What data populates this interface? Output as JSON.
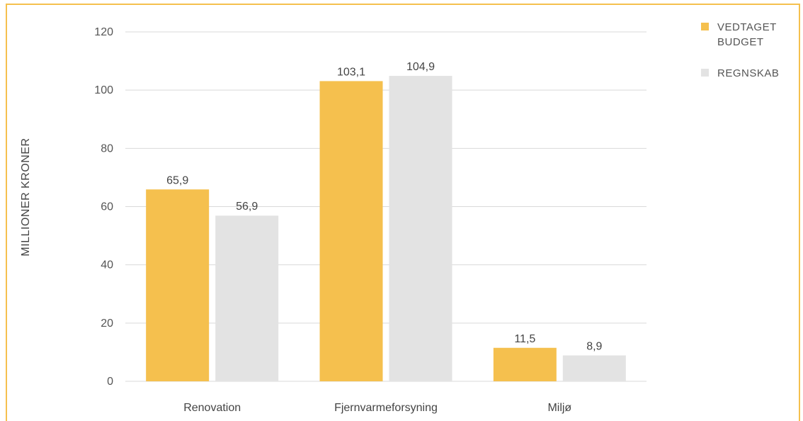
{
  "chart_data": {
    "type": "bar",
    "categories": [
      "Renovation",
      "Fjernvarmeforsyning",
      "Miljø"
    ],
    "series": [
      {
        "name": "VEDTAGET BUDGET",
        "values": [
          65.9,
          103.1,
          11.5
        ],
        "labels": [
          "65,9",
          "103,1",
          "11,5"
        ],
        "color": "#f5c04e"
      },
      {
        "name": "REGNSKAB",
        "values": [
          56.9,
          104.9,
          8.9
        ],
        "labels": [
          "56,9",
          "104,9",
          "8,9"
        ],
        "color": "#e3e3e3"
      }
    ],
    "ylabel": "MILLIONER KRONER",
    "xlabel": "",
    "ylim": [
      0,
      120
    ],
    "yticks": [
      0,
      20,
      40,
      60,
      80,
      100,
      120
    ],
    "ytick_labels": [
      "0",
      "20",
      "40",
      "60",
      "80",
      "100",
      "120"
    ],
    "legend": {
      "placement": "top-right",
      "entries": [
        {
          "lines": [
            "VEDTAGET",
            "BUDGET"
          ]
        },
        {
          "lines": [
            "REGNSKAB"
          ]
        }
      ]
    },
    "grid": true,
    "colors": {
      "frame": "#f5c04e",
      "grid": "#d9d9d9"
    }
  }
}
